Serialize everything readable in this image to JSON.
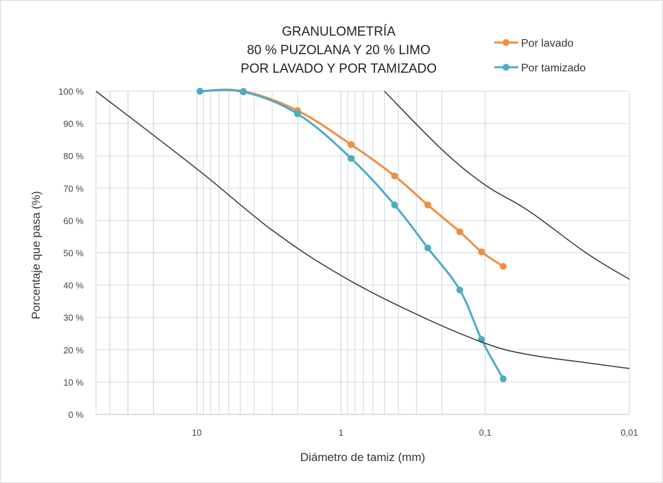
{
  "chart_data": {
    "type": "line",
    "title": [
      "GRANULOMETRÍA",
      "80 % PUZOLANA Y 20 % LIMO",
      "POR LAVADO Y POR TAMIZADO"
    ],
    "xlabel": "Diámetro de tamiz (mm)",
    "ylabel": "Porcentaje que pasa (%)",
    "x_scale": "log",
    "x_reversed": true,
    "xlim": [
      50,
      0.01
    ],
    "ylim": [
      0,
      100
    ],
    "x_ticks": [
      {
        "value": 10,
        "label": "10"
      },
      {
        "value": 1,
        "label": "1"
      },
      {
        "value": 0.1,
        "label": "0,1"
      },
      {
        "value": 0.01,
        "label": "0,01"
      }
    ],
    "y_ticks": [
      {
        "value": 0,
        "label": "0 %"
      },
      {
        "value": 10,
        "label": "10 %"
      },
      {
        "value": 20,
        "label": "20 %"
      },
      {
        "value": 30,
        "label": "30 %"
      },
      {
        "value": 40,
        "label": "40 %"
      },
      {
        "value": 50,
        "label": "50 %"
      },
      {
        "value": 60,
        "label": "60 %"
      },
      {
        "value": 70,
        "label": "70 %"
      },
      {
        "value": 80,
        "label": "80 %"
      },
      {
        "value": 90,
        "label": "90 %"
      },
      {
        "value": 100,
        "label": "100 %"
      }
    ],
    "grid": {
      "vertical_minor": true,
      "horizontal": true
    },
    "legend_position": "top-right",
    "series": [
      {
        "name": "Por lavado",
        "color": "#F28E3C",
        "x": [
          9.5,
          4.75,
          2.0,
          0.85,
          0.425,
          0.25,
          0.15,
          0.106,
          0.075
        ],
        "y": [
          100,
          100,
          94,
          83.5,
          73.8,
          64.8,
          56.5,
          50.3,
          45.8
        ]
      },
      {
        "name": "Por tamizado",
        "color": "#4BACC6",
        "x": [
          9.5,
          4.75,
          2.0,
          0.85,
          0.425,
          0.25,
          0.15,
          0.106,
          0.075
        ],
        "y": [
          100,
          99.8,
          93,
          79.2,
          64.8,
          51.5,
          38.5,
          23.2,
          11
        ]
      },
      {
        "name": "",
        "color": "#333333",
        "role": "envelope",
        "x": [
          50,
          10,
          3,
          1,
          0.3,
          0.1,
          0.05,
          0.02,
          0.01
        ],
        "y": [
          100,
          76,
          57,
          43,
          31,
          22,
          18.5,
          16,
          14.2
        ]
      },
      {
        "name": "",
        "color": "#333333",
        "role": "envelope",
        "x": [
          0.5,
          0.2,
          0.1,
          0.05,
          0.02,
          0.01
        ],
        "y": [
          100,
          82,
          71,
          63,
          50,
          41.8
        ]
      }
    ]
  }
}
